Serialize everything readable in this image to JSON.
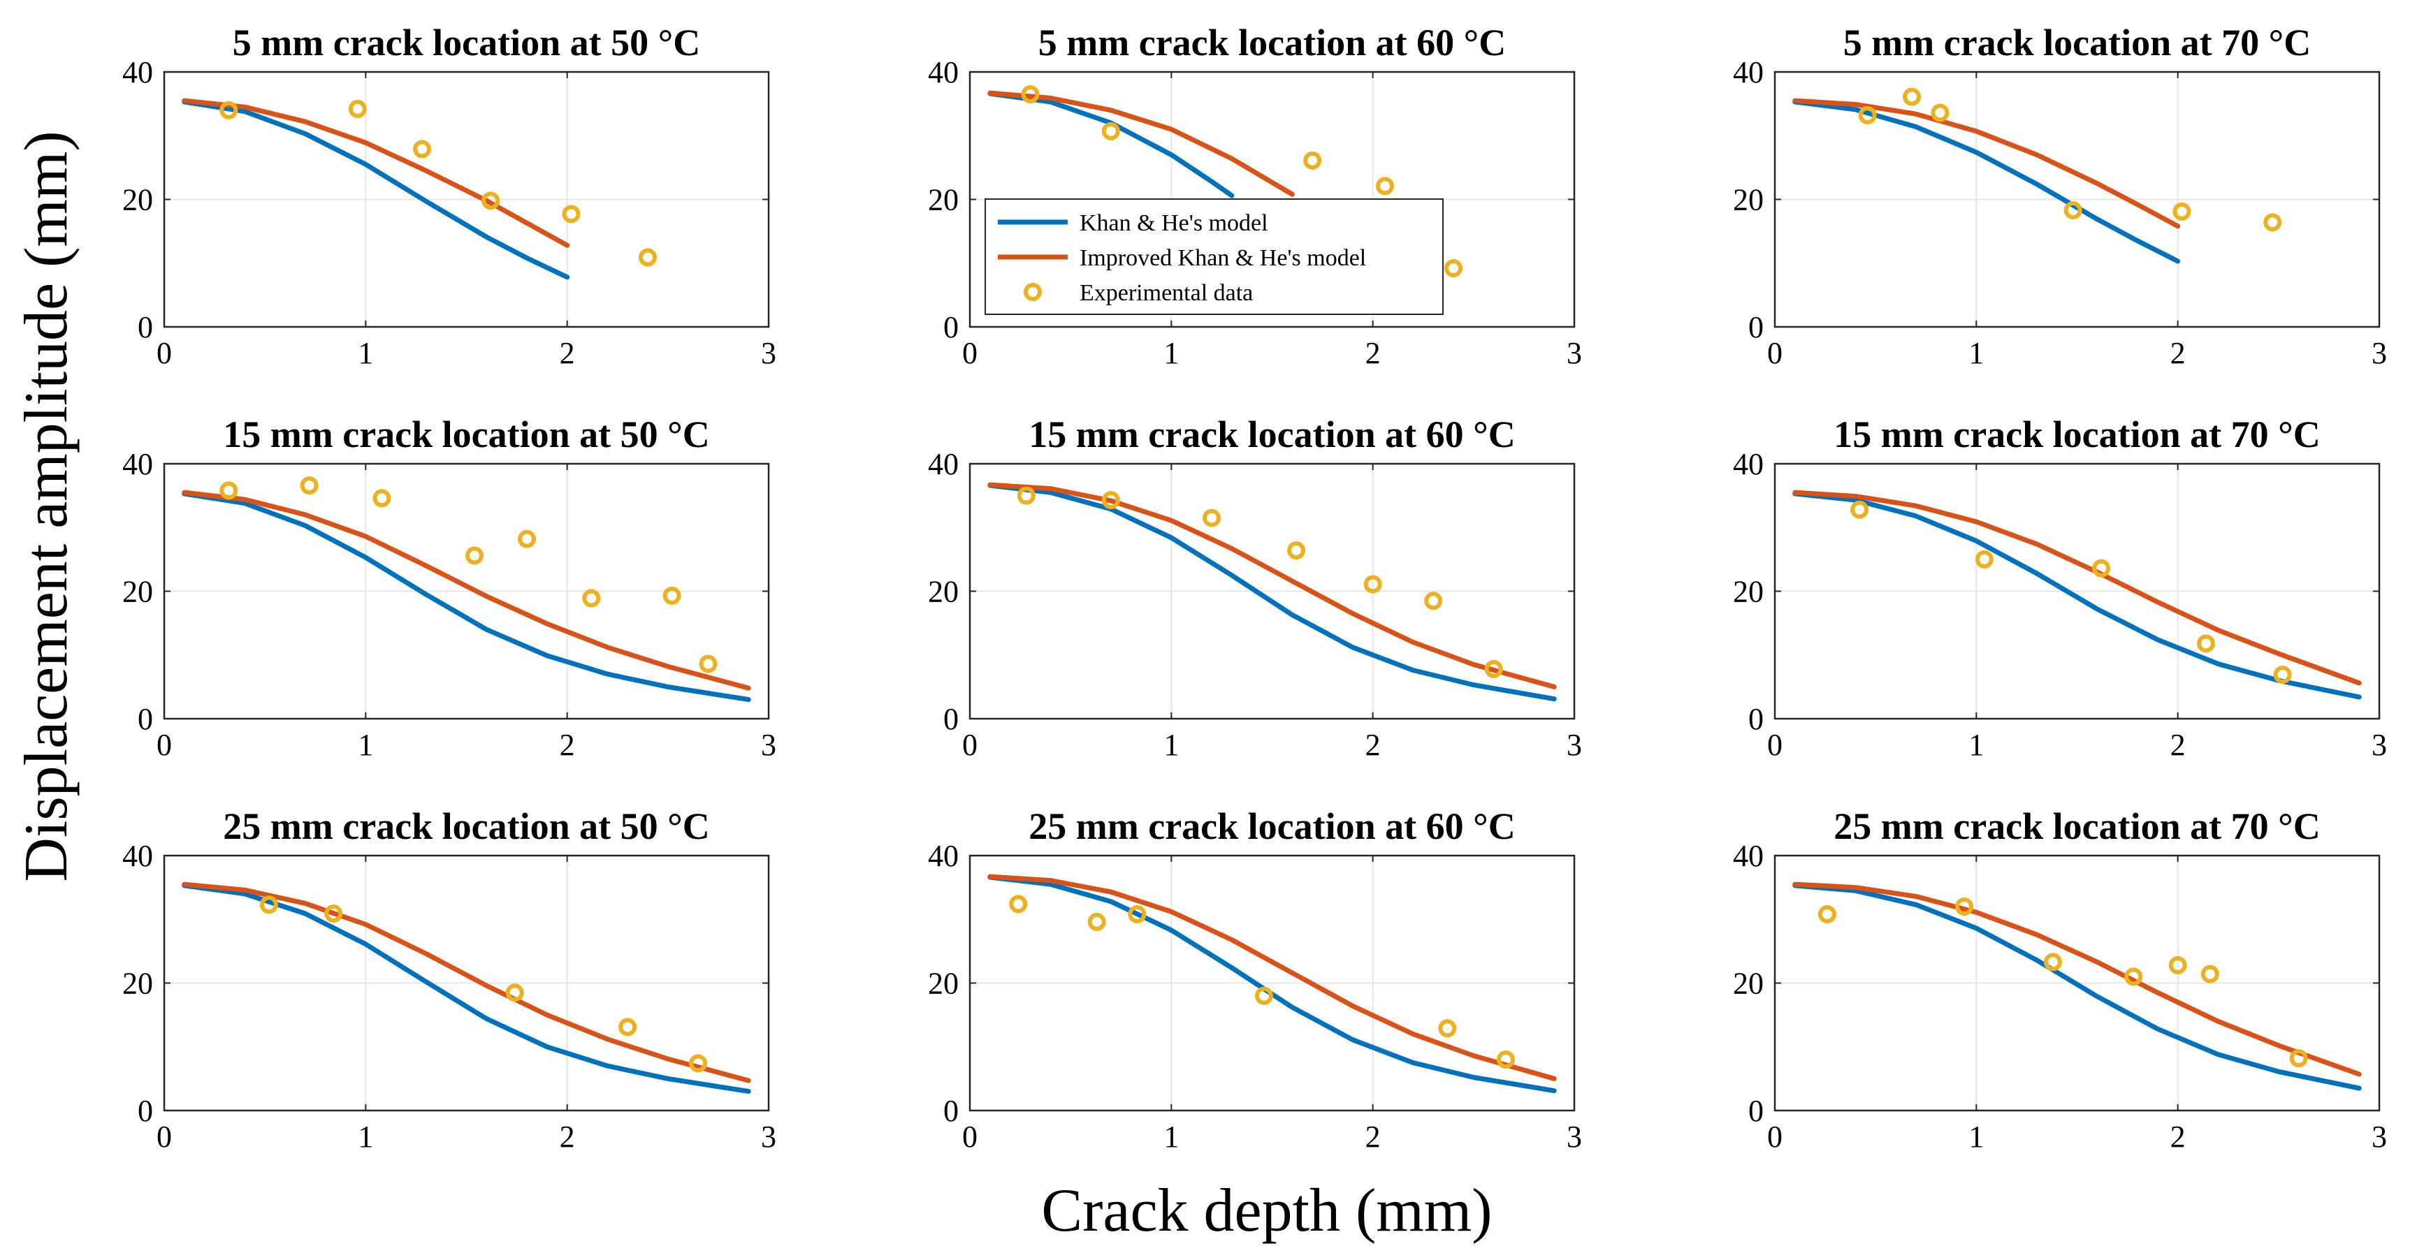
{
  "figure": {
    "xlabel": "Crack depth (mm)",
    "ylabel": "Displacement amplitude (mm)"
  },
  "legend": {
    "location": "inside-top-left of the 60 °C, 5 mm panel",
    "entries": [
      {
        "label": "Khan & He's model",
        "kind": "line",
        "series": "khan"
      },
      {
        "label": "Improved Khan & He's model",
        "kind": "line",
        "series": "improved"
      },
      {
        "label": "Experimental data",
        "kind": "marker",
        "series": "experimental"
      }
    ]
  },
  "colors": {
    "khan": "#0072BD",
    "improved": "#D95319",
    "experimental": "#EDB120",
    "grid": "#e6e6e6",
    "axes": "#262626"
  },
  "chart_data": [
    {
      "type": "line",
      "title": "5 mm crack location at 50 °C",
      "xlim": [
        0,
        3
      ],
      "ylim": [
        0,
        40
      ],
      "xticks": [
        0,
        1,
        2,
        3
      ],
      "yticks": [
        0,
        20,
        40
      ],
      "grid": true,
      "series": [
        {
          "name": "Khan & He's model",
          "x": [
            0.1,
            0.4,
            0.7,
            1.0,
            1.3,
            1.6,
            1.8,
            2.0
          ],
          "y": [
            35.3,
            33.8,
            30.3,
            25.5,
            19.7,
            14.1,
            10.8,
            7.8
          ]
        },
        {
          "name": "Improved Khan & He's model",
          "x": [
            0.1,
            0.4,
            0.7,
            1.0,
            1.3,
            1.6,
            1.8,
            2.0
          ],
          "y": [
            35.5,
            34.5,
            32.2,
            28.9,
            24.5,
            19.8,
            16.3,
            12.8
          ]
        },
        {
          "name": "Experimental data",
          "x": [
            0.32,
            0.96,
            1.28,
            1.62,
            2.02,
            2.4
          ],
          "y": [
            34,
            34.2,
            27.9,
            19.8,
            17.7,
            10.9
          ]
        }
      ]
    },
    {
      "type": "line",
      "title": "5 mm crack location at 60 °C",
      "xlim": [
        0,
        3
      ],
      "ylim": [
        0,
        40
      ],
      "xticks": [
        0,
        1,
        2,
        3
      ],
      "yticks": [
        0,
        20,
        40
      ],
      "grid": true,
      "series": [
        {
          "name": "Khan & He's model",
          "x": [
            0.1,
            0.4,
            0.7,
            1.0,
            1.2,
            1.3
          ],
          "y": [
            36.6,
            35.3,
            32.0,
            27.0,
            22.8,
            20.6
          ]
        },
        {
          "name": "Improved Khan & He's model",
          "x": [
            0.1,
            0.4,
            0.7,
            1.0,
            1.3,
            1.6
          ],
          "y": [
            36.7,
            35.9,
            34.0,
            31.0,
            26.4,
            20.8
          ]
        },
        {
          "name": "Experimental data",
          "x": [
            0.3,
            0.7,
            1.7,
            2.06,
            2.4
          ],
          "y": [
            36.5,
            30.7,
            26.1,
            22.1,
            9.2
          ]
        }
      ]
    },
    {
      "type": "line",
      "title": "5 mm crack location at 70 °C",
      "xlim": [
        0,
        3
      ],
      "ylim": [
        0,
        40
      ],
      "xticks": [
        0,
        1,
        2,
        3
      ],
      "yticks": [
        0,
        20,
        40
      ],
      "grid": true,
      "series": [
        {
          "name": "Khan & He's model",
          "x": [
            0.1,
            0.4,
            0.7,
            1.0,
            1.3,
            1.6,
            1.8,
            2.0
          ],
          "y": [
            35.3,
            34.1,
            31.4,
            27.4,
            22.4,
            16.9,
            13.5,
            10.3
          ]
        },
        {
          "name": "Improved Khan & He's model",
          "x": [
            0.1,
            0.4,
            0.7,
            1.0,
            1.3,
            1.6,
            1.8,
            2.0
          ],
          "y": [
            35.5,
            34.9,
            33.4,
            30.7,
            27.0,
            22.5,
            19.2,
            15.8
          ]
        },
        {
          "name": "Experimental data",
          "x": [
            0.46,
            0.68,
            0.82,
            1.48,
            2.02,
            2.47
          ],
          "y": [
            33.2,
            36.1,
            33.6,
            18.3,
            18.1,
            16.4
          ]
        }
      ]
    },
    {
      "type": "line",
      "title": "15 mm crack location at 50 °C",
      "xlim": [
        0,
        3
      ],
      "ylim": [
        0,
        40
      ],
      "xticks": [
        0,
        1,
        2,
        3
      ],
      "yticks": [
        0,
        20,
        40
      ],
      "grid": true,
      "series": [
        {
          "name": "Khan & He's model",
          "x": [
            0.1,
            0.4,
            0.7,
            1.0,
            1.3,
            1.6,
            1.9,
            2.2,
            2.5,
            2.9
          ],
          "y": [
            35.3,
            33.8,
            30.3,
            25.3,
            19.5,
            14.0,
            9.9,
            7.0,
            5.0,
            3.0
          ]
        },
        {
          "name": "Improved Khan & He's model",
          "x": [
            0.1,
            0.4,
            0.7,
            1.0,
            1.3,
            1.6,
            1.9,
            2.2,
            2.5,
            2.9
          ],
          "y": [
            35.5,
            34.4,
            32.0,
            28.6,
            24.0,
            19.2,
            14.9,
            11.2,
            8.2,
            4.8
          ]
        },
        {
          "name": "Experimental data",
          "x": [
            0.32,
            0.72,
            1.08,
            1.54,
            1.8,
            2.12,
            2.52,
            2.7
          ],
          "y": [
            35.8,
            36.6,
            34.6,
            25.6,
            28.2,
            18.9,
            19.3,
            8.6
          ]
        }
      ]
    },
    {
      "type": "line",
      "title": "15 mm crack location at 60 °C",
      "xlim": [
        0,
        3
      ],
      "ylim": [
        0,
        40
      ],
      "xticks": [
        0,
        1,
        2,
        3
      ],
      "yticks": [
        0,
        20,
        40
      ],
      "grid": true,
      "series": [
        {
          "name": "Khan & He's model",
          "x": [
            0.1,
            0.4,
            0.7,
            1.0,
            1.3,
            1.6,
            1.9,
            2.2,
            2.5,
            2.9
          ],
          "y": [
            36.6,
            35.5,
            32.9,
            28.4,
            22.5,
            16.3,
            11.2,
            7.6,
            5.3,
            3.1
          ]
        },
        {
          "name": "Improved Khan & He's model",
          "x": [
            0.1,
            0.4,
            0.7,
            1.0,
            1.3,
            1.6,
            1.9,
            2.2,
            2.5,
            2.9
          ],
          "y": [
            36.7,
            36.1,
            34.2,
            31.1,
            26.7,
            21.6,
            16.5,
            12.0,
            8.5,
            5.0
          ]
        },
        {
          "name": "Experimental data",
          "x": [
            0.28,
            0.7,
            1.2,
            1.62,
            2.0,
            2.3,
            2.6
          ],
          "y": [
            35.0,
            34.3,
            31.5,
            26.4,
            21.1,
            18.5,
            7.8
          ]
        }
      ]
    },
    {
      "type": "line",
      "title": "15 mm crack location at 70 °C",
      "xlim": [
        0,
        3
      ],
      "ylim": [
        0,
        40
      ],
      "xticks": [
        0,
        1,
        2,
        3
      ],
      "yticks": [
        0,
        20,
        40
      ],
      "grid": true,
      "series": [
        {
          "name": "Khan & He's model",
          "x": [
            0.1,
            0.4,
            0.7,
            1.0,
            1.3,
            1.6,
            1.9,
            2.2,
            2.5,
            2.9
          ],
          "y": [
            35.3,
            34.3,
            31.8,
            27.9,
            22.8,
            17.2,
            12.4,
            8.6,
            6.0,
            3.4
          ]
        },
        {
          "name": "Improved Khan & He's model",
          "x": [
            0.1,
            0.4,
            0.7,
            1.0,
            1.3,
            1.6,
            1.9,
            2.2,
            2.5,
            2.9
          ],
          "y": [
            35.5,
            34.9,
            33.4,
            30.9,
            27.4,
            23.0,
            18.3,
            13.9,
            10.2,
            5.6
          ]
        },
        {
          "name": "Experimental data",
          "x": [
            0.42,
            1.04,
            1.62,
            2.14,
            2.52
          ],
          "y": [
            32.8,
            25.0,
            23.6,
            11.8,
            6.9
          ]
        }
      ]
    },
    {
      "type": "line",
      "title": "25 mm crack location at 50 °C",
      "xlim": [
        0,
        3
      ],
      "ylim": [
        0,
        40
      ],
      "xticks": [
        0,
        1,
        2,
        3
      ],
      "yticks": [
        0,
        20,
        40
      ],
      "grid": true,
      "series": [
        {
          "name": "Khan & He's model",
          "x": [
            0.1,
            0.4,
            0.7,
            1.0,
            1.3,
            1.6,
            1.9,
            2.2,
            2.5,
            2.9
          ],
          "y": [
            35.3,
            34.0,
            30.9,
            26.1,
            20.2,
            14.4,
            10.0,
            7.0,
            5.0,
            3.0
          ]
        },
        {
          "name": "Improved Khan & He's model",
          "x": [
            0.1,
            0.4,
            0.7,
            1.0,
            1.3,
            1.6,
            1.9,
            2.2,
            2.5,
            2.9
          ],
          "y": [
            35.5,
            34.6,
            32.5,
            29.2,
            24.6,
            19.6,
            15.0,
            11.2,
            8.1,
            4.7
          ]
        },
        {
          "name": "Experimental data",
          "x": [
            0.52,
            0.84,
            1.74,
            2.3,
            2.65
          ],
          "y": [
            32.3,
            30.9,
            18.5,
            13.1,
            7.4
          ]
        }
      ]
    },
    {
      "type": "line",
      "title": "25 mm crack location at 60 °C",
      "xlim": [
        0,
        3
      ],
      "ylim": [
        0,
        40
      ],
      "xticks": [
        0,
        1,
        2,
        3
      ],
      "yticks": [
        0,
        20,
        40
      ],
      "grid": true,
      "series": [
        {
          "name": "Khan & He's model",
          "x": [
            0.1,
            0.4,
            0.7,
            1.0,
            1.3,
            1.6,
            1.9,
            2.2,
            2.5,
            2.9
          ],
          "y": [
            36.6,
            35.5,
            32.8,
            28.3,
            22.4,
            16.2,
            11.1,
            7.5,
            5.2,
            3.1
          ]
        },
        {
          "name": "Improved Khan & He's model",
          "x": [
            0.1,
            0.4,
            0.7,
            1.0,
            1.3,
            1.6,
            1.9,
            2.2,
            2.5,
            2.9
          ],
          "y": [
            36.7,
            36.1,
            34.3,
            31.2,
            26.8,
            21.6,
            16.4,
            12.0,
            8.6,
            5.0
          ]
        },
        {
          "name": "Experimental data",
          "x": [
            0.24,
            0.63,
            0.83,
            1.46,
            2.37,
            2.66
          ],
          "y": [
            32.4,
            29.6,
            30.8,
            18.0,
            12.9,
            8.0
          ]
        }
      ]
    },
    {
      "type": "line",
      "title": "25 mm crack location at 70 °C",
      "xlim": [
        0,
        3
      ],
      "ylim": [
        0,
        40
      ],
      "xticks": [
        0,
        1,
        2,
        3
      ],
      "yticks": [
        0,
        20,
        40
      ],
      "grid": true,
      "series": [
        {
          "name": "Khan & He's model",
          "x": [
            0.1,
            0.4,
            0.7,
            1.0,
            1.3,
            1.6,
            1.9,
            2.2,
            2.5,
            2.9
          ],
          "y": [
            35.3,
            34.5,
            32.3,
            28.6,
            23.6,
            17.9,
            12.8,
            8.8,
            6.1,
            3.5
          ]
        },
        {
          "name": "Improved Khan & He's model",
          "x": [
            0.1,
            0.4,
            0.7,
            1.0,
            1.3,
            1.6,
            1.9,
            2.2,
            2.5,
            2.9
          ],
          "y": [
            35.5,
            35.0,
            33.6,
            31.1,
            27.6,
            23.3,
            18.5,
            14.0,
            10.2,
            5.7
          ]
        },
        {
          "name": "Experimental data",
          "x": [
            0.26,
            0.94,
            1.38,
            1.78,
            2.0,
            2.16,
            2.6
          ],
          "y": [
            30.8,
            32.0,
            23.3,
            21.0,
            22.8,
            21.4,
            8.2
          ]
        }
      ]
    }
  ]
}
